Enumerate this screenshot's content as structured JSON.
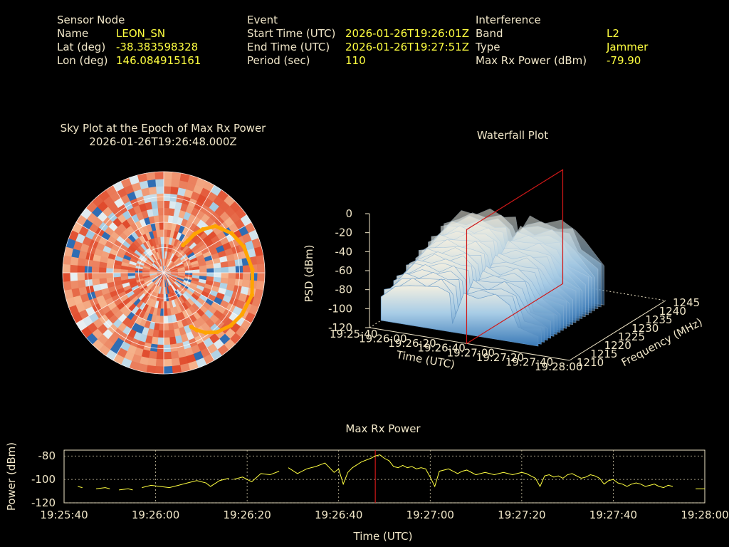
{
  "sensor": {
    "heading": "Sensor Node",
    "name_label": "Name",
    "name": "LEON_SN",
    "lat_label": "Lat (deg)",
    "lat": "-38.383598328",
    "lon_label": "Lon (deg)",
    "lon": "146.084915161"
  },
  "event": {
    "heading": "Event",
    "start_label": "Start Time (UTC)",
    "start": "2026-01-26T19:26:01Z",
    "end_label": "End Time (UTC)",
    "end": "2026-01-26T19:27:51Z",
    "period_label": "Period (sec)",
    "period": "110"
  },
  "interference": {
    "heading": "Interference",
    "band_label": "Band",
    "band": "L2",
    "type_label": "Type",
    "type": "Jammer",
    "maxpower_label": "Max Rx Power (dBm)",
    "maxpower": "-79.90"
  },
  "chart_data": [
    {
      "type": "heatmap",
      "title": "Sky Plot at the Epoch of Max Rx Power",
      "subtitle": "2026-01-26T19:26:48.000Z",
      "projection": "polar",
      "rings": 4,
      "spokes": 12,
      "colors": {
        "low": "#2f6db3",
        "mid": "#e9f0f2",
        "high": "#e04a2c",
        "track": "#ffa500"
      },
      "track": [
        {
          "az": 35.0,
          "el": 60.0
        },
        {
          "az": 37.0,
          "el": 54.0
        },
        {
          "az": 38.5,
          "el": 46.0
        },
        {
          "az": 42.0,
          "el": 38.0
        },
        {
          "az": 48.0,
          "el": 28.0
        },
        {
          "az": 60.0,
          "el": 20.0
        },
        {
          "az": 72.0,
          "el": 15.0
        },
        {
          "az": 88.0,
          "el": 11.0
        },
        {
          "az": 104.0,
          "el": 9.0
        },
        {
          "az": 118.0,
          "el": 11.0
        },
        {
          "az": 128.0,
          "el": 14.0
        },
        {
          "az": 138.0,
          "el": 19.0
        },
        {
          "az": 145.0,
          "el": 25.0
        },
        {
          "az": 150.0,
          "el": 31.0
        },
        {
          "az": 153.0,
          "el": 36.0
        }
      ]
    },
    {
      "type": "area",
      "title": "Waterfall Plot",
      "xlabel": "Time (UTC)",
      "ylabel": "Frequency (MHz)",
      "zlabel": "PSD (dBm)",
      "x_ticks": [
        "19:25:40",
        "19:26:00",
        "19:26:20",
        "19:26:40",
        "19:27:00",
        "19:27:20",
        "19:27:40",
        "19:28:00"
      ],
      "y_ticks": [
        "1210",
        "1215",
        "1220",
        "1225",
        "1230",
        "1235",
        "1240",
        "1245"
      ],
      "z_ticks": [
        "0",
        "-20",
        "-40",
        "-60",
        "-80",
        "-100",
        "-120"
      ],
      "zlim": [
        -120,
        0
      ],
      "ylim": [
        1210,
        1245
      ],
      "cut_time": "19:26:48",
      "surface": [
        {
          "t": 0,
          "front": -95,
          "top": -58
        },
        {
          "t": 10,
          "front": -82,
          "top": -47
        },
        {
          "t": 20,
          "front": -78,
          "top": -42
        },
        {
          "t": 30,
          "front": -77,
          "top": -40
        },
        {
          "t": 40,
          "front": -74,
          "top": -40
        },
        {
          "t": 48,
          "front": -80,
          "top": -44
        },
        {
          "t": 50,
          "front": -110,
          "top": -55
        },
        {
          "t": 58,
          "front": -78,
          "top": -40
        },
        {
          "t": 68,
          "front": -79,
          "top": -40
        },
        {
          "t": 80,
          "front": -74,
          "top": -39
        },
        {
          "t": 90,
          "front": -80,
          "top": -42
        },
        {
          "t": 96,
          "front": -105,
          "top": -55
        },
        {
          "t": 110,
          "front": -108,
          "top": -75
        }
      ]
    },
    {
      "type": "line",
      "title": "Max Rx Power",
      "xlabel": "Time (UTC)",
      "ylabel": "Power (dBm)",
      "x_ticks": [
        "19:25:40",
        "19:26:00",
        "19:26:20",
        "19:26:40",
        "19:27:00",
        "19:27:20",
        "19:27:40",
        "19:28:00"
      ],
      "y_ticks": [
        -80,
        -100,
        -120
      ],
      "xlim": [
        0,
        140
      ],
      "ylim": [
        -120,
        -75
      ],
      "marker_x": 68,
      "series": [
        {
          "color": "#ffff40",
          "segments": [
            [
              [
                3,
                -106
              ],
              [
                4,
                -107
              ]
            ],
            [
              [
                7,
                -108
              ],
              [
                9,
                -107
              ],
              [
                10,
                -108
              ]
            ],
            [
              [
                12,
                -109
              ],
              [
                14,
                -108
              ],
              [
                15,
                -109
              ]
            ],
            [
              [
                17,
                -107
              ],
              [
                19,
                -105
              ],
              [
                21,
                -106
              ],
              [
                23,
                -107
              ],
              [
                25,
                -105
              ],
              [
                27,
                -103
              ],
              [
                29,
                -101
              ],
              [
                31,
                -103
              ],
              [
                32,
                -106
              ],
              [
                34,
                -101
              ],
              [
                36,
                -99
              ]
            ],
            [
              [
                37,
                -100
              ],
              [
                39,
                -98
              ],
              [
                41,
                -102
              ],
              [
                43,
                -95
              ],
              [
                45,
                -96
              ],
              [
                47,
                -93
              ]
            ],
            [
              [
                49,
                -90
              ],
              [
                51,
                -95
              ],
              [
                53,
                -91
              ],
              [
                55,
                -89
              ],
              [
                57,
                -86
              ],
              [
                58,
                -90
              ],
              [
                59,
                -94
              ],
              [
                60,
                -91
              ],
              [
                61,
                -104
              ],
              [
                62,
                -94
              ],
              [
                63,
                -90
              ],
              [
                65,
                -85
              ],
              [
                67,
                -82
              ],
              [
                68,
                -80
              ],
              [
                69,
                -79
              ],
              [
                70,
                -82
              ],
              [
                71,
                -84
              ],
              [
                72,
                -89
              ],
              [
                73,
                -90
              ],
              [
                74,
                -88
              ],
              [
                75,
                -90
              ],
              [
                76,
                -89
              ],
              [
                77,
                -91
              ],
              [
                78,
                -90
              ],
              [
                79,
                -91
              ],
              [
                80,
                -98
              ],
              [
                81,
                -106
              ],
              [
                82,
                -93
              ],
              [
                83,
                -92
              ],
              [
                84,
                -91
              ],
              [
                85,
                -93
              ],
              [
                86,
                -95
              ],
              [
                87,
                -93
              ],
              [
                88,
                -92
              ],
              [
                89,
                -94
              ],
              [
                90,
                -96
              ],
              [
                91,
                -95
              ],
              [
                92,
                -94
              ],
              [
                93,
                -95
              ],
              [
                94,
                -96
              ],
              [
                95,
                -95
              ],
              [
                96,
                -94
              ],
              [
                97,
                -95
              ],
              [
                98,
                -96
              ],
              [
                99,
                -95
              ],
              [
                100,
                -94
              ],
              [
                101,
                -95
              ],
              [
                102,
                -97
              ],
              [
                103,
                -99
              ],
              [
                104,
                -106
              ],
              [
                105,
                -97
              ],
              [
                106,
                -96
              ],
              [
                107,
                -98
              ],
              [
                108,
                -97
              ],
              [
                109,
                -99
              ],
              [
                110,
                -96
              ],
              [
                111,
                -95
              ],
              [
                112,
                -97
              ],
              [
                113,
                -99
              ],
              [
                114,
                -98
              ],
              [
                115,
                -96
              ],
              [
                116,
                -97
              ],
              [
                117,
                -99
              ],
              [
                118,
                -104
              ],
              [
                119,
                -101
              ],
              [
                120,
                -100
              ],
              [
                121,
                -103
              ],
              [
                122,
                -104
              ],
              [
                123,
                -106
              ],
              [
                124,
                -104
              ],
              [
                125,
                -103
              ],
              [
                126,
                -104
              ],
              [
                127,
                -106
              ],
              [
                128,
                -105
              ],
              [
                129,
                -104
              ],
              [
                130,
                -106
              ],
              [
                131,
                -107
              ],
              [
                132,
                -105
              ],
              [
                133,
                -106
              ]
            ],
            [
              [
                138,
                -108
              ],
              [
                140,
                -108
              ]
            ]
          ]
        }
      ]
    }
  ]
}
